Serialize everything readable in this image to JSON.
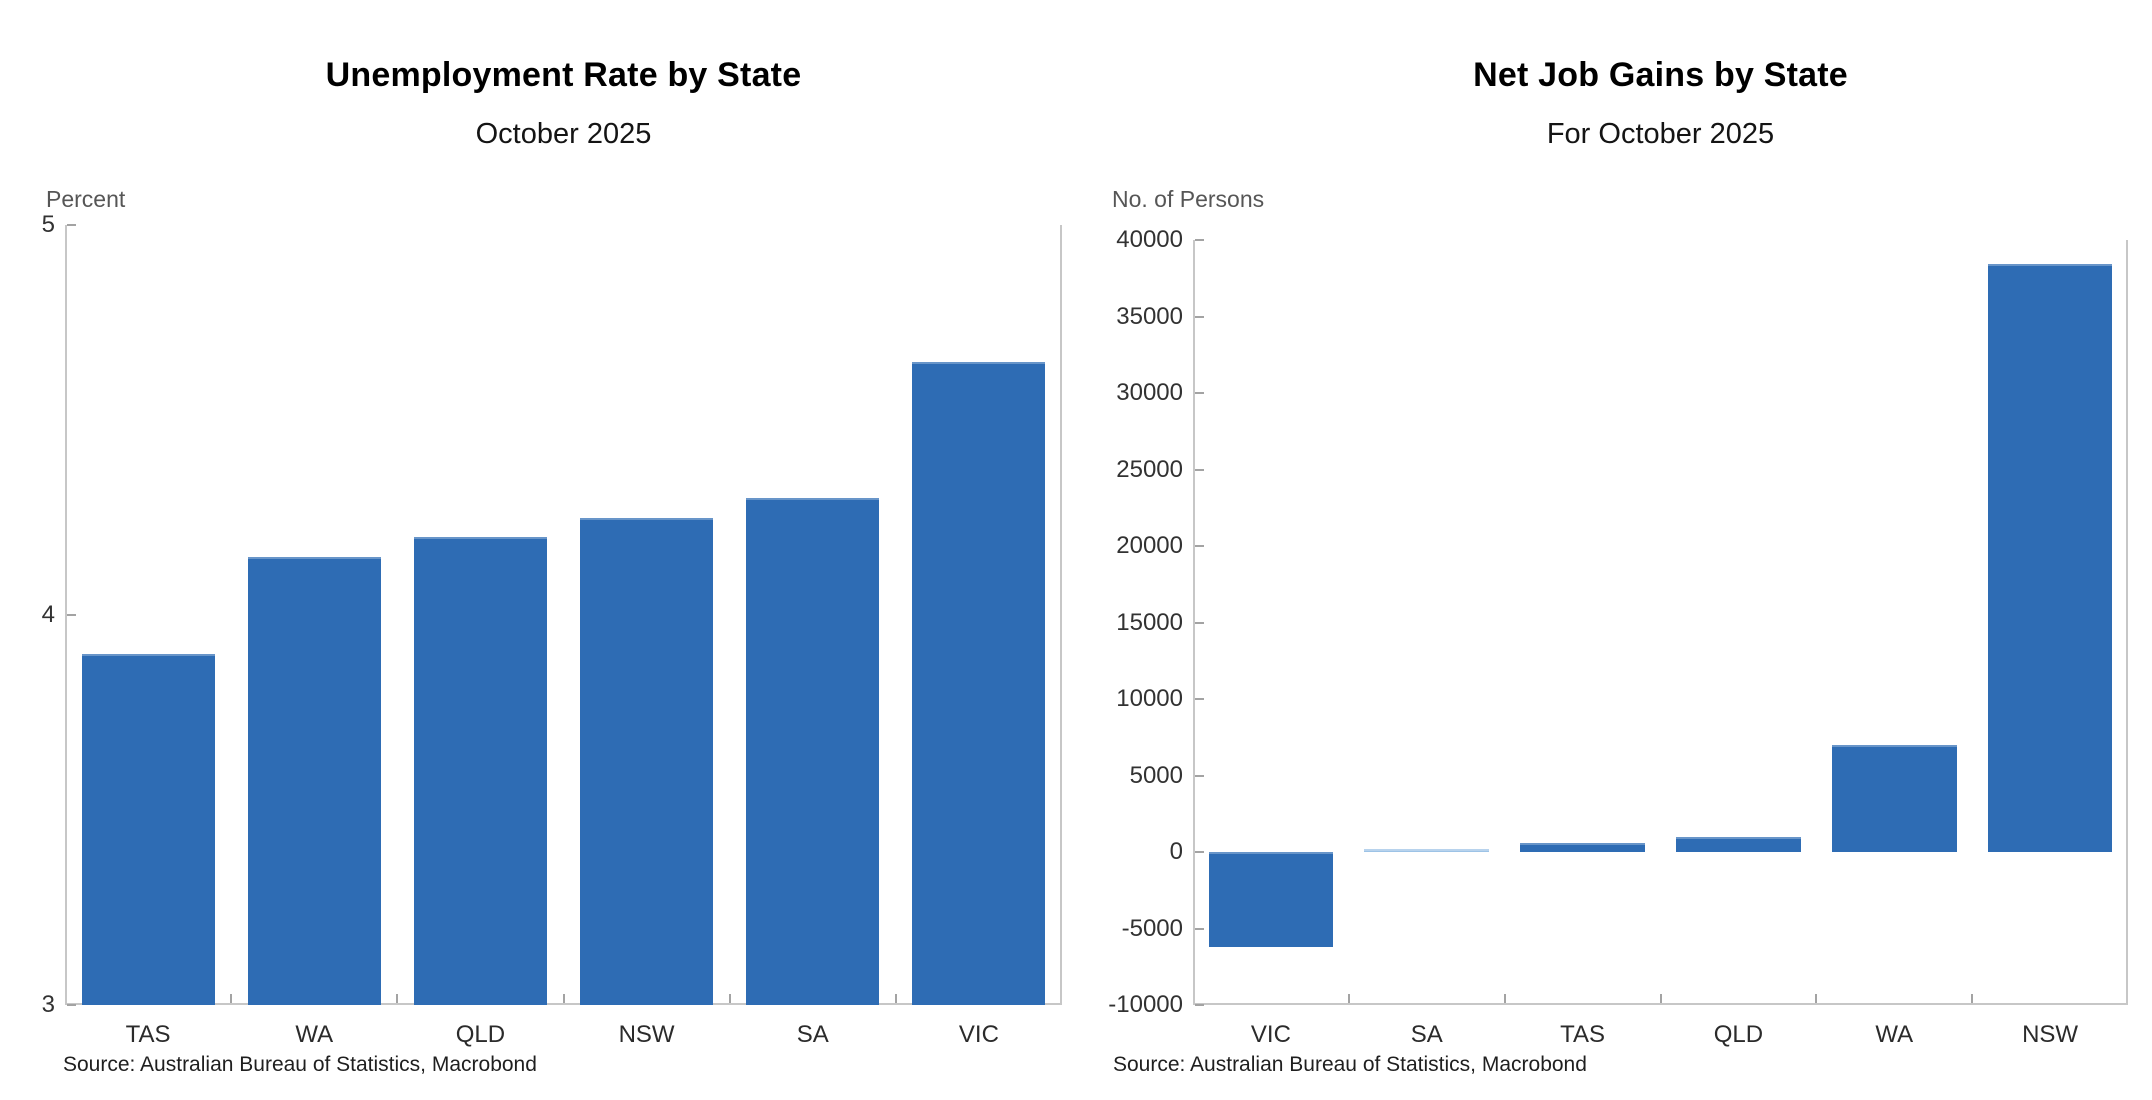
{
  "chart_data": [
    {
      "type": "bar",
      "title": "Unemployment Rate by State",
      "subtitle": "October 2025",
      "ylabel": "Percent",
      "xlabel": "",
      "categories": [
        "TAS",
        "WA",
        "QLD",
        "NSW",
        "SA",
        "VIC"
      ],
      "values": [
        3.9,
        4.15,
        4.2,
        4.25,
        4.3,
        4.65
      ],
      "ylim": [
        3,
        5
      ],
      "yticks": [
        3,
        4,
        5
      ],
      "baseline": 3,
      "grid": false,
      "legend_position": "none",
      "bar_color": "#2e6cb4",
      "thin_bar_color": "#9dc3e6",
      "bar_width_frac": 0.8,
      "source": "Source: Australian Bureau of Statistics, Macrobond"
    },
    {
      "type": "bar",
      "title": "Net Job Gains by State",
      "subtitle": "For October 2025",
      "ylabel": "No. of Persons",
      "xlabel": "",
      "categories": [
        "VIC",
        "SA",
        "TAS",
        "QLD",
        "WA",
        "NSW"
      ],
      "values": [
        -6200,
        100,
        600,
        1000,
        7000,
        38400
      ],
      "ylim": [
        -10000,
        40000
      ],
      "yticks": [
        -10000,
        -5000,
        0,
        5000,
        10000,
        15000,
        20000,
        25000,
        30000,
        35000,
        40000
      ],
      "baseline": 0,
      "grid": false,
      "legend_position": "none",
      "bar_color": "#2e6cb4",
      "thin_bar_color": "#9dc3e6",
      "bar_width_frac": 0.8,
      "source": "Source: Australian Bureau of Statistics, Macrobond"
    }
  ]
}
